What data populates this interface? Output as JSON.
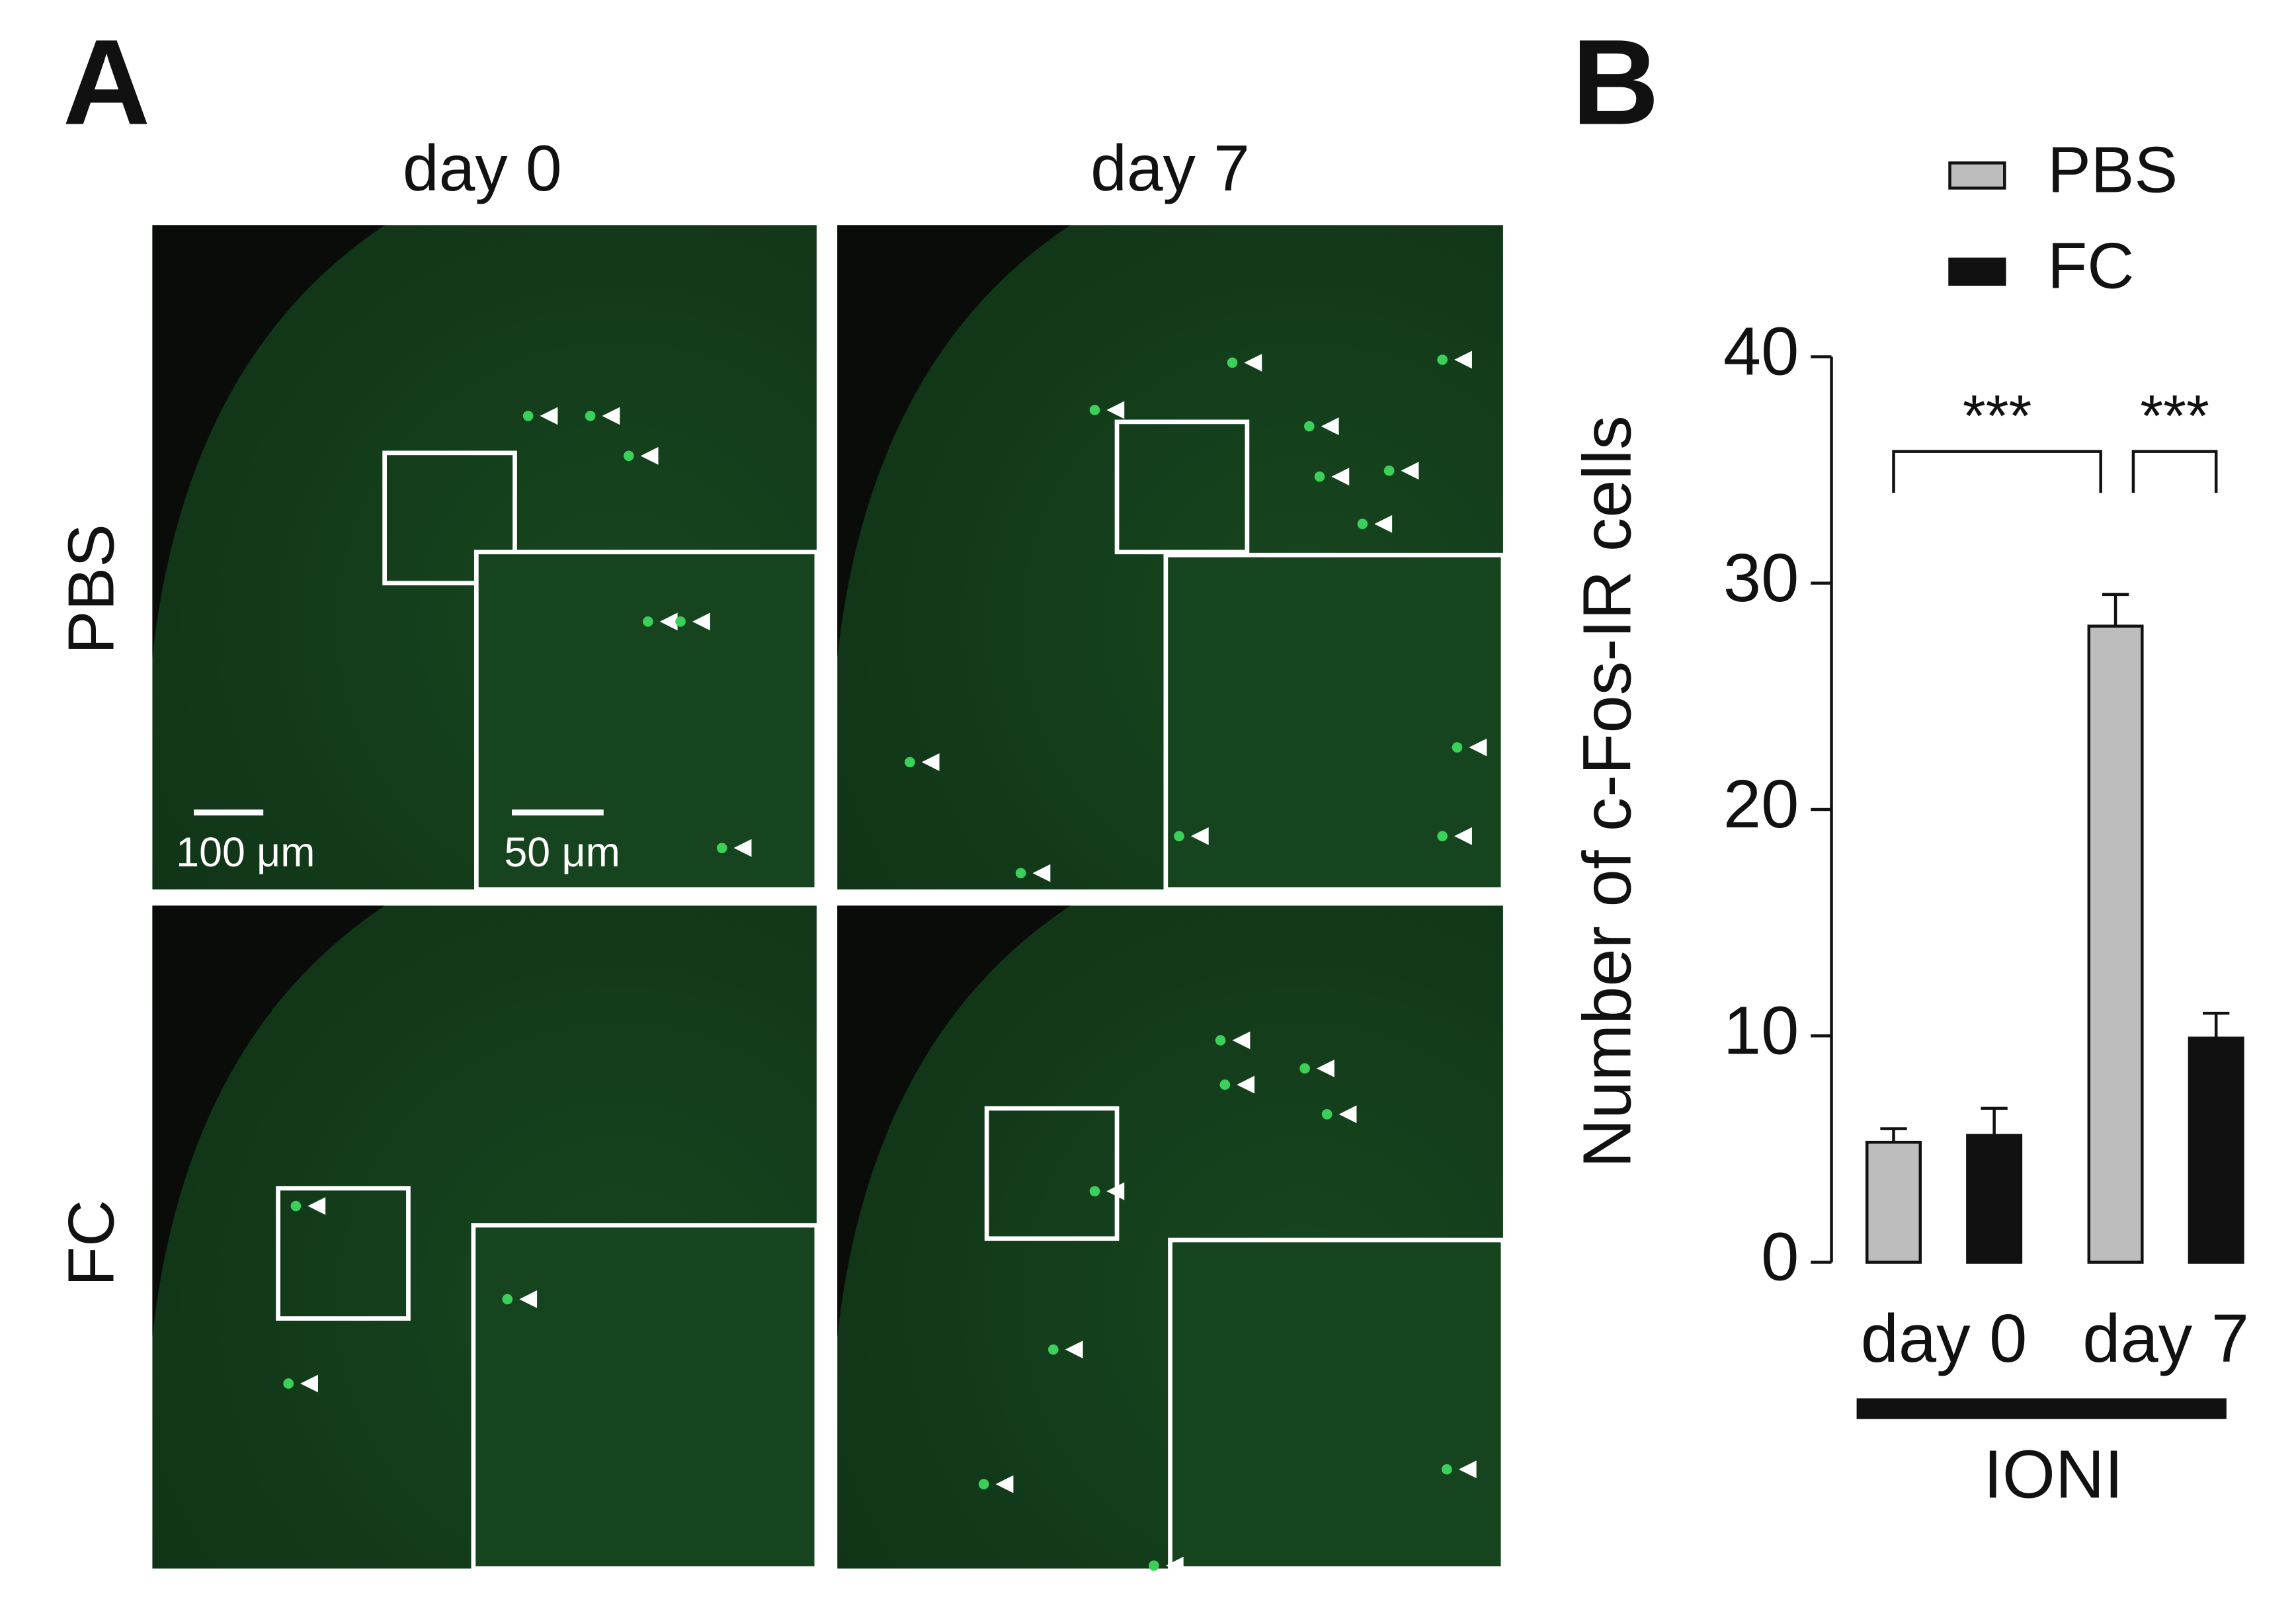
{
  "panel_a": {
    "label": "A",
    "columns": [
      "day 0",
      "day 7"
    ],
    "rows": [
      "PBS",
      "FC"
    ],
    "scale_bars": [
      "100 μm",
      "50 μm"
    ]
  },
  "chart_data": {
    "type": "bar",
    "panel_label": "B",
    "y_label": "Number of c-Fos-IR cells",
    "categories": [
      "day 0",
      "day 7"
    ],
    "group_label": "IONI",
    "series": [
      {
        "name": "PBS",
        "color": "#bdbdbd",
        "values": [
          5.3,
          28.1
        ],
        "errors": [
          0.6,
          1.4
        ]
      },
      {
        "name": "FC",
        "color": "#111111",
        "values": [
          5.6,
          9.9
        ],
        "errors": [
          1.2,
          1.1
        ]
      }
    ],
    "significance": [
      "***",
      "***"
    ],
    "ylim": [
      0,
      40
    ],
    "yticks": [
      0,
      10,
      20,
      30,
      40
    ],
    "legend": "top"
  }
}
